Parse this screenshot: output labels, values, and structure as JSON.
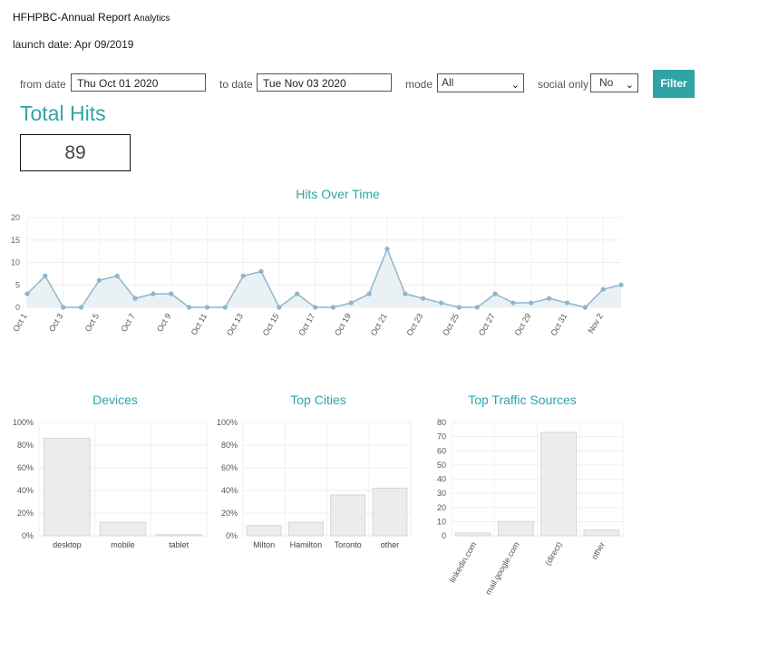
{
  "header": {
    "app_name": "HFHPBC-Annual Report",
    "app_sub": "Analytics",
    "launch_date": "launch date: Apr 09/2019"
  },
  "filters": {
    "from_label": "from date",
    "from_value": "Thu Oct 01 2020",
    "to_label": "to date",
    "to_value": "Tue Nov 03 2020",
    "mode_label": "mode",
    "mode_value": "All",
    "social_label": "social only",
    "social_value": "No",
    "filter_button": "Filter"
  },
  "total": {
    "label": "Total Hits",
    "value": "89"
  },
  "colors": {
    "accent": "#2fa4a7",
    "line": "#8fb5ca",
    "bar_fill": "#ececec",
    "bar_stroke": "#d6d6d6"
  },
  "chart_data": [
    {
      "type": "line",
      "title": "Hits Over Time",
      "x": [
        "Oct 1",
        "Oct 2",
        "Oct 3",
        "Oct 4",
        "Oct 5",
        "Oct 6",
        "Oct 7",
        "Oct 8",
        "Oct 9",
        "Oct 10",
        "Oct 11",
        "Oct 12",
        "Oct 13",
        "Oct 14",
        "Oct 15",
        "Oct 16",
        "Oct 17",
        "Oct 18",
        "Oct 19",
        "Oct 20",
        "Oct 21",
        "Oct 22",
        "Oct 23",
        "Oct 24",
        "Oct 25",
        "Oct 26",
        "Oct 27",
        "Oct 28",
        "Oct 29",
        "Oct 30",
        "Oct 31",
        "Nov 1",
        "Nov 2",
        "Nov 3"
      ],
      "tick_labels": [
        "Oct 1",
        "Oct 3",
        "Oct 5",
        "Oct 7",
        "Oct 9",
        "Oct 11",
        "Oct 13",
        "Oct 15",
        "Oct 17",
        "Oct 19",
        "Oct 21",
        "Oct 23",
        "Oct 25",
        "Oct 27",
        "Oct 29",
        "Oct 31",
        "Nov 2"
      ],
      "values": [
        3,
        7,
        0,
        0,
        6,
        7,
        2,
        3,
        3,
        0,
        0,
        0,
        7,
        8,
        0,
        3,
        0,
        0,
        1,
        3,
        13,
        3,
        2,
        1,
        0,
        0,
        3,
        1,
        1,
        2,
        1,
        0,
        4,
        5
      ],
      "ylim": [
        0,
        20
      ],
      "yticks": [
        "0",
        "5",
        "10",
        "15",
        "20"
      ],
      "grid": true
    },
    {
      "type": "bar",
      "title": "Devices",
      "categories": [
        "desktop",
        "mobile",
        "tablet"
      ],
      "values": [
        86,
        12,
        1
      ],
      "ylim": [
        0,
        100
      ],
      "yticks": [
        "0%",
        "20%",
        "40%",
        "60%",
        "80%",
        "100%"
      ]
    },
    {
      "type": "bar",
      "title": "Top Cities",
      "categories": [
        "Milton",
        "Hamilton",
        "Toronto",
        "other"
      ],
      "values": [
        9,
        12,
        36,
        42
      ],
      "ylim": [
        0,
        100
      ],
      "yticks": [
        "0%",
        "20%",
        "40%",
        "60%",
        "80%",
        "100%"
      ]
    },
    {
      "type": "bar",
      "title": "Top Traffic Sources",
      "categories": [
        "linkedin.com",
        "mail.google.com",
        "(direct)",
        "other"
      ],
      "values": [
        2,
        10,
        73,
        4
      ],
      "ylim": [
        0,
        80
      ],
      "yticks": [
        "0",
        "10",
        "20",
        "30",
        "40",
        "50",
        "60",
        "70",
        "80"
      ]
    }
  ]
}
